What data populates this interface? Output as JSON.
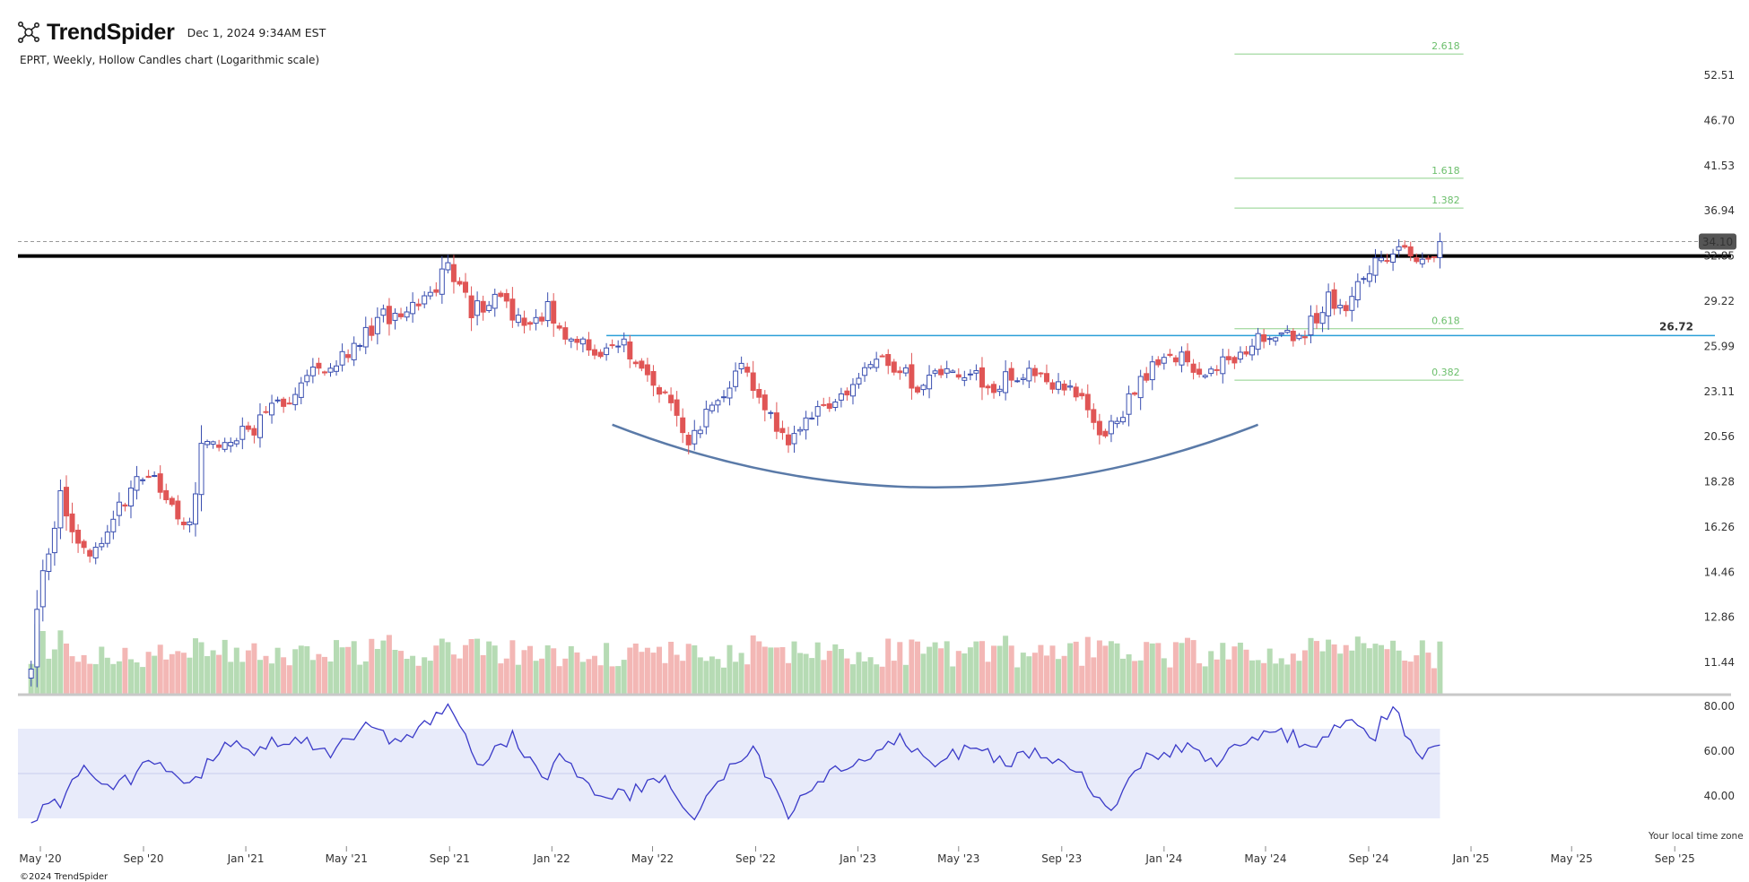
{
  "header": {
    "brand": "TrendSpider",
    "timestamp": "Dec 1, 2024 9:34AM EST"
  },
  "chart_title": "EPRT, Weekly, Hollow Candles chart (Logarithmic scale)",
  "footer": {
    "copyright": "©2024 TrendSpider",
    "timezone_note": "Your local time zone"
  },
  "colors": {
    "up": "#3a4fb0",
    "down": "#e05555",
    "volume_up": "#b6dbb4",
    "volume_down": "#f3b7b5",
    "fib": "#8dd08a",
    "fib_text": "#6cbf6c",
    "support_line": "#2a9fd8",
    "resistance_line": "#000000",
    "arc": "#5a7aa8",
    "rsi_line": "#3a3ac8",
    "rsi_band": "#e8ebfa"
  },
  "chart_data": {
    "type": "candlestick",
    "symbol": "EPRT",
    "interval": "Weekly",
    "scale": "log",
    "price_axis_ticks": [
      "52.51",
      "46.70",
      "41.53",
      "36.94",
      "32.85",
      "29.22",
      "25.99",
      "23.11",
      "20.56",
      "18.28",
      "16.26",
      "14.46",
      "12.86",
      "11.44"
    ],
    "last_price": "34.10",
    "x_axis_ticks": [
      "May '20",
      "Sep '20",
      "Jan '21",
      "May '21",
      "Sep '21",
      "Jan '22",
      "May '22",
      "Sep '22",
      "Jan '23",
      "May '23",
      "Sep '23",
      "Jan '24",
      "May '24",
      "Sep '24",
      "Jan '25",
      "May '25",
      "Sep '25"
    ],
    "horizontal_levels": [
      {
        "kind": "resistance",
        "value": 32.85
      },
      {
        "kind": "support",
        "value": 26.72,
        "label": "26.72"
      }
    ],
    "fibonacci_levels": [
      {
        "label": "2.618",
        "value": 55.5
      },
      {
        "label": "1.618",
        "value": 40.2
      },
      {
        "label": "1.382",
        "value": 37.2
      },
      {
        "label": "0.618",
        "value": 27.2
      },
      {
        "label": "0.382",
        "value": 23.8
      }
    ],
    "close_anchors": [
      [
        "2020-04-20",
        11.5
      ],
      [
        "2020-05-04",
        14.5
      ],
      [
        "2020-05-25",
        17.5
      ],
      [
        "2020-06-08",
        16.0
      ],
      [
        "2020-07-06",
        15.2
      ],
      [
        "2020-08-10",
        17.5
      ],
      [
        "2020-09-07",
        18.8
      ],
      [
        "2020-10-05",
        17.2
      ],
      [
        "2020-10-26",
        16.4
      ],
      [
        "2020-11-09",
        19.8
      ],
      [
        "2020-12-07",
        20.4
      ],
      [
        "2021-01-04",
        20.8
      ],
      [
        "2021-02-08",
        22.3
      ],
      [
        "2021-03-08",
        23.4
      ],
      [
        "2021-04-05",
        24.8
      ],
      [
        "2021-05-10",
        25.8
      ],
      [
        "2021-06-14",
        28.2
      ],
      [
        "2021-07-05",
        27.5
      ],
      [
        "2021-08-16",
        30.5
      ],
      [
        "2021-08-30",
        32.2
      ],
      [
        "2021-09-27",
        28.6
      ],
      [
        "2021-11-01",
        29.5
      ],
      [
        "2021-11-29",
        27.0
      ],
      [
        "2021-12-27",
        28.8
      ],
      [
        "2022-01-24",
        26.1
      ],
      [
        "2022-02-28",
        25.8
      ],
      [
        "2022-03-28",
        26.1
      ],
      [
        "2022-05-02",
        23.5
      ],
      [
        "2022-05-30",
        22.0
      ],
      [
        "2022-06-13",
        20.2
      ],
      [
        "2022-07-18",
        22.8
      ],
      [
        "2022-08-15",
        24.5
      ],
      [
        "2022-09-12",
        22.0
      ],
      [
        "2022-10-10",
        19.8
      ],
      [
        "2022-11-07",
        21.8
      ],
      [
        "2022-12-19",
        23.4
      ],
      [
        "2023-02-06",
        25.2
      ],
      [
        "2023-03-13",
        23.4
      ],
      [
        "2023-04-24",
        24.4
      ],
      [
        "2023-06-12",
        23.5
      ],
      [
        "2023-07-24",
        24.6
      ],
      [
        "2023-08-21",
        23.6
      ],
      [
        "2023-09-18",
        22.8
      ],
      [
        "2023-10-23",
        20.6
      ],
      [
        "2023-11-27",
        23.0
      ],
      [
        "2024-01-01",
        25.6
      ],
      [
        "2024-02-12",
        24.6
      ],
      [
        "2024-03-18",
        24.8
      ],
      [
        "2024-04-22",
        26.7
      ],
      [
        "2024-06-17",
        26.9
      ],
      [
        "2024-07-15",
        29.4
      ],
      [
        "2024-08-05",
        28.9
      ],
      [
        "2024-09-09",
        32.5
      ],
      [
        "2024-10-07",
        33.8
      ],
      [
        "2024-11-04",
        32.2
      ],
      [
        "2024-11-25",
        34.1
      ]
    ],
    "rsi": {
      "axis_ticks": [
        "80.00",
        "60.00",
        "40.00"
      ],
      "band": [
        30,
        70
      ],
      "anchors": [
        [
          "2020-04-20",
          30
        ],
        [
          "2020-05-25",
          38
        ],
        [
          "2020-06-22",
          52
        ],
        [
          "2020-08-03",
          45
        ],
        [
          "2020-09-14",
          55
        ],
        [
          "2020-10-26",
          45
        ],
        [
          "2020-12-07",
          62
        ],
        [
          "2021-01-18",
          61
        ],
        [
          "2021-03-01",
          67
        ],
        [
          "2021-04-12",
          60
        ],
        [
          "2021-05-24",
          70
        ],
        [
          "2021-07-05",
          62
        ],
        [
          "2021-08-30",
          80
        ],
        [
          "2021-10-04",
          54
        ],
        [
          "2021-11-15",
          66
        ],
        [
          "2021-12-20",
          48
        ],
        [
          "2022-01-17",
          59
        ],
        [
          "2022-02-28",
          38
        ],
        [
          "2022-04-11",
          42
        ],
        [
          "2022-05-16",
          46
        ],
        [
          "2022-06-20",
          31
        ],
        [
          "2022-08-01",
          52
        ],
        [
          "2022-08-29",
          60
        ],
        [
          "2022-10-10",
          32
        ],
        [
          "2022-11-21",
          48
        ],
        [
          "2023-01-09",
          56
        ],
        [
          "2023-02-20",
          65
        ],
        [
          "2023-04-03",
          55
        ],
        [
          "2023-05-15",
          61
        ],
        [
          "2023-07-03",
          56
        ],
        [
          "2023-08-14",
          60
        ],
        [
          "2023-09-18",
          50
        ],
        [
          "2023-10-30",
          35
        ],
        [
          "2023-12-11",
          57
        ],
        [
          "2024-01-22",
          62
        ],
        [
          "2024-03-04",
          54
        ],
        [
          "2024-04-08",
          65
        ],
        [
          "2024-05-20",
          68
        ],
        [
          "2024-07-01",
          62
        ],
        [
          "2024-08-05",
          73
        ],
        [
          "2024-09-09",
          68
        ],
        [
          "2024-09-30",
          80
        ],
        [
          "2024-10-28",
          57
        ],
        [
          "2024-11-25",
          65
        ]
      ]
    }
  }
}
